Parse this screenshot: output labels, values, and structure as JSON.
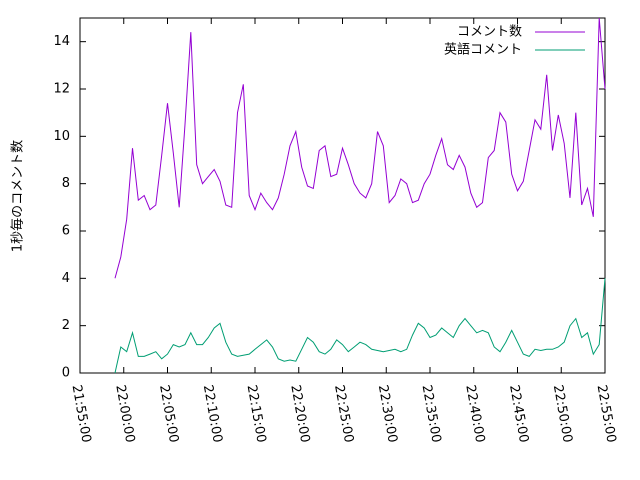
{
  "chart_data": {
    "type": "line",
    "ylabel": "1秒毎のコメント数",
    "x": [
      "21:59:00",
      "21:59:40",
      "22:00:20",
      "22:01:00",
      "22:01:40",
      "22:02:20",
      "22:03:00",
      "22:03:40",
      "22:04:20",
      "22:05:00",
      "22:05:40",
      "22:06:20",
      "22:07:00",
      "22:07:40",
      "22:08:20",
      "22:09:00",
      "22:09:40",
      "22:10:20",
      "22:11:00",
      "22:11:40",
      "22:12:20",
      "22:13:00",
      "22:13:40",
      "22:14:20",
      "22:15:00",
      "22:15:40",
      "22:16:20",
      "22:17:00",
      "22:17:40",
      "22:18:20",
      "22:19:00",
      "22:19:40",
      "22:20:20",
      "22:21:00",
      "22:21:40",
      "22:22:20",
      "22:23:00",
      "22:23:40",
      "22:24:20",
      "22:25:00",
      "22:25:40",
      "22:26:20",
      "22:27:00",
      "22:27:40",
      "22:28:20",
      "22:29:00",
      "22:29:40",
      "22:30:20",
      "22:31:00",
      "22:31:40",
      "22:32:20",
      "22:33:00",
      "22:33:40",
      "22:34:20",
      "22:35:00",
      "22:35:40",
      "22:36:20",
      "22:37:00",
      "22:37:40",
      "22:38:20",
      "22:39:00",
      "22:39:40",
      "22:40:20",
      "22:41:00",
      "22:41:40",
      "22:42:20",
      "22:43:00",
      "22:43:40",
      "22:44:20",
      "22:45:00",
      "22:45:40",
      "22:46:20",
      "22:47:00",
      "22:47:40",
      "22:48:20",
      "22:49:00",
      "22:49:40",
      "22:50:20",
      "22:51:00",
      "22:51:40",
      "22:52:20",
      "22:53:00",
      "22:53:40",
      "22:54:20",
      "22:55:00"
    ],
    "series": [
      {
        "name": "コメント数",
        "color": "#9400d3",
        "values": [
          4.0,
          4.9,
          6.5,
          9.5,
          7.3,
          7.5,
          6.9,
          7.1,
          9.2,
          11.4,
          9.3,
          7.0,
          10.5,
          14.4,
          8.8,
          8.0,
          8.3,
          8.6,
          8.1,
          7.1,
          7.0,
          11.0,
          12.2,
          7.5,
          6.9,
          7.6,
          7.2,
          6.9,
          7.4,
          8.4,
          9.6,
          10.2,
          8.7,
          7.9,
          7.8,
          9.4,
          9.6,
          8.3,
          8.4,
          9.5,
          8.8,
          8.0,
          7.6,
          7.4,
          8.0,
          10.2,
          9.6,
          7.2,
          7.5,
          8.2,
          8.0,
          7.2,
          7.3,
          8.0,
          8.4,
          9.2,
          9.9,
          8.8,
          8.6,
          9.2,
          8.7,
          7.6,
          7.0,
          7.2,
          9.1,
          9.4,
          11.0,
          10.6,
          8.4,
          7.7,
          8.1,
          9.4,
          10.7,
          10.3,
          12.6,
          9.4,
          10.9,
          9.7,
          7.4,
          11.0,
          7.1,
          7.8,
          6.6,
          15.0,
          12.0
        ]
      },
      {
        "name": "英語コメント",
        "color": "#009e73",
        "values": [
          0,
          1.1,
          0.9,
          1.7,
          0.7,
          0.7,
          0.8,
          0.9,
          0.6,
          0.8,
          1.2,
          1.1,
          1.2,
          1.7,
          1.2,
          1.2,
          1.5,
          1.9,
          2.1,
          1.3,
          0.8,
          0.7,
          0.75,
          0.8,
          1.0,
          1.2,
          1.4,
          1.1,
          0.6,
          0.5,
          0.55,
          0.5,
          1.0,
          1.5,
          1.3,
          0.9,
          0.8,
          1.0,
          1.4,
          1.2,
          0.9,
          1.1,
          1.3,
          1.2,
          1.0,
          0.95,
          0.9,
          0.95,
          1.0,
          0.9,
          1.0,
          1.6,
          2.1,
          1.9,
          1.5,
          1.6,
          1.9,
          1.7,
          1.5,
          2.0,
          2.3,
          2.0,
          1.7,
          1.8,
          1.7,
          1.1,
          0.9,
          1.3,
          1.8,
          1.3,
          0.8,
          0.7,
          1.0,
          0.95,
          1.0,
          1.0,
          1.1,
          1.3,
          2.0,
          2.3,
          1.5,
          1.7,
          0.8,
          1.2,
          4.0
        ]
      }
    ],
    "xlim": [
      "21:55:00",
      "22:55:00"
    ],
    "xticks": [
      "21:55:00",
      "22:00:00",
      "22:05:00",
      "22:10:00",
      "22:15:00",
      "22:20:00",
      "22:25:00",
      "22:30:00",
      "22:35:00",
      "22:40:00",
      "22:45:00",
      "22:50:00",
      "22:55:00"
    ],
    "ylim": [
      0,
      15
    ],
    "yticks": [
      0,
      2,
      4,
      6,
      8,
      10,
      12,
      14
    ],
    "legend": "top-right"
  }
}
